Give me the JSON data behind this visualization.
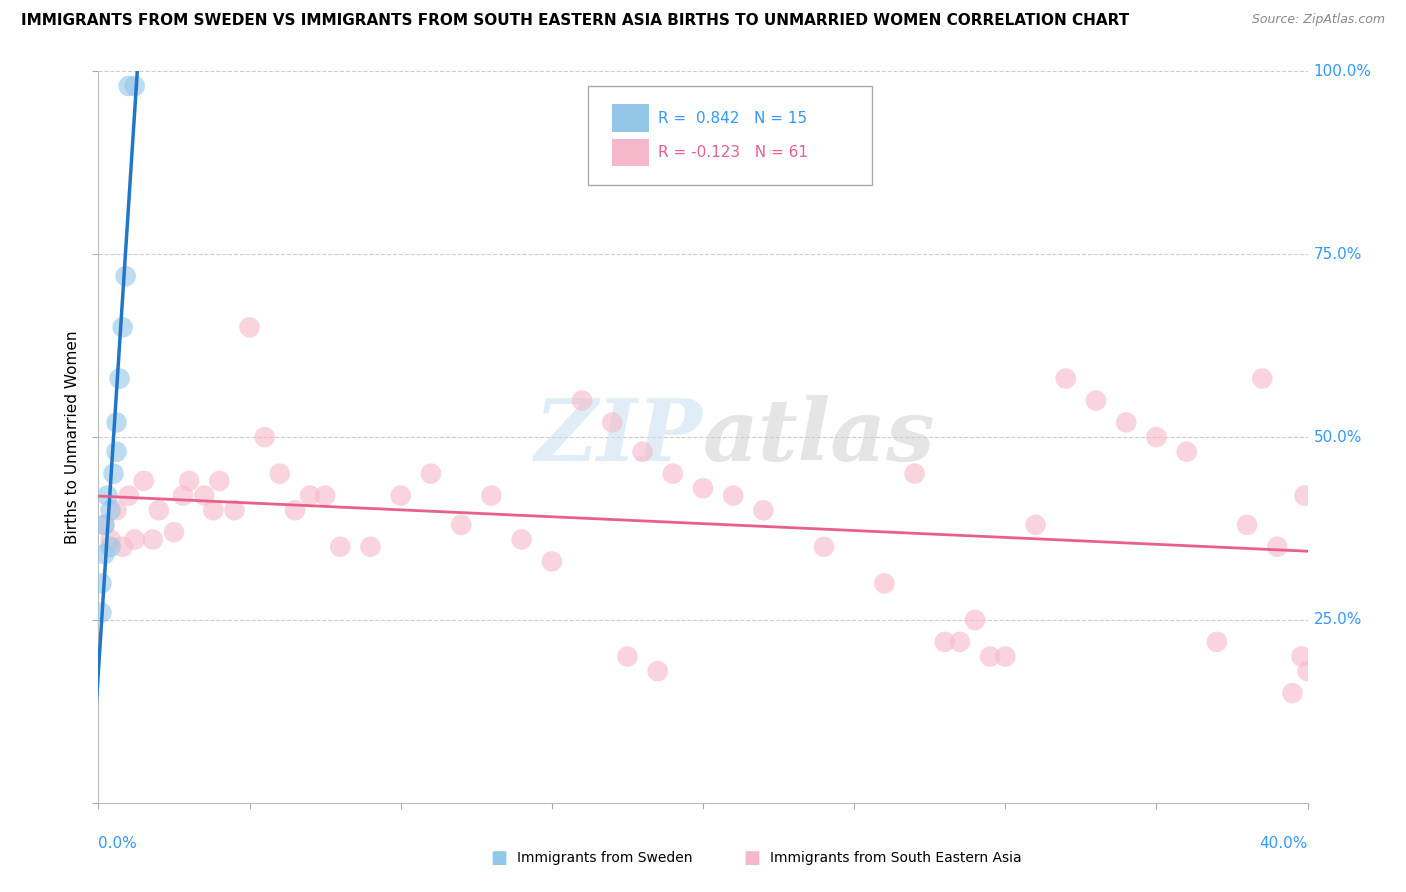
{
  "title": "IMMIGRANTS FROM SWEDEN VS IMMIGRANTS FROM SOUTH EASTERN ASIA BIRTHS TO UNMARRIED WOMEN CORRELATION CHART",
  "source": "Source: ZipAtlas.com",
  "ylabel_label": "Births to Unmarried Women",
  "legend_blue_label": "Immigrants from Sweden",
  "legend_pink_label": "Immigrants from South Eastern Asia",
  "R_blue": 0.842,
  "N_blue": 15,
  "R_pink": -0.123,
  "N_pink": 61,
  "blue_color": "#94c6e8",
  "pink_color": "#f5b8cb",
  "blue_line_color": "#2176c7",
  "pink_line_color": "#e8608a",
  "xlim": [
    0,
    0.4
  ],
  "ylim": [
    0,
    1.0
  ],
  "blue_x": [
    0.001,
    0.001,
    0.002,
    0.002,
    0.003,
    0.004,
    0.004,
    0.005,
    0.006,
    0.006,
    0.007,
    0.008,
    0.009,
    0.01,
    0.012
  ],
  "blue_y": [
    0.26,
    0.3,
    0.34,
    0.38,
    0.42,
    0.35,
    0.4,
    0.45,
    0.48,
    0.52,
    0.58,
    0.65,
    0.72,
    0.98,
    0.98
  ],
  "pink_x": [
    0.002,
    0.004,
    0.006,
    0.008,
    0.01,
    0.012,
    0.015,
    0.018,
    0.02,
    0.025,
    0.028,
    0.03,
    0.035,
    0.038,
    0.04,
    0.045,
    0.05,
    0.055,
    0.06,
    0.065,
    0.07,
    0.075,
    0.08,
    0.09,
    0.1,
    0.11,
    0.12,
    0.13,
    0.14,
    0.15,
    0.16,
    0.17,
    0.18,
    0.19,
    0.2,
    0.21,
    0.22,
    0.24,
    0.26,
    0.27,
    0.28,
    0.29,
    0.3,
    0.31,
    0.32,
    0.33,
    0.34,
    0.35,
    0.36,
    0.37,
    0.38,
    0.385,
    0.39,
    0.395,
    0.398,
    0.399,
    0.4,
    0.285,
    0.295,
    0.175,
    0.185
  ],
  "pink_y": [
    0.38,
    0.36,
    0.4,
    0.35,
    0.42,
    0.36,
    0.44,
    0.36,
    0.4,
    0.37,
    0.42,
    0.44,
    0.42,
    0.4,
    0.44,
    0.4,
    0.65,
    0.5,
    0.45,
    0.4,
    0.42,
    0.42,
    0.35,
    0.35,
    0.42,
    0.45,
    0.38,
    0.42,
    0.36,
    0.33,
    0.55,
    0.52,
    0.48,
    0.45,
    0.43,
    0.42,
    0.4,
    0.35,
    0.3,
    0.45,
    0.22,
    0.25,
    0.2,
    0.38,
    0.58,
    0.55,
    0.52,
    0.5,
    0.48,
    0.22,
    0.38,
    0.58,
    0.35,
    0.15,
    0.2,
    0.42,
    0.18,
    0.22,
    0.2,
    0.2,
    0.18
  ]
}
